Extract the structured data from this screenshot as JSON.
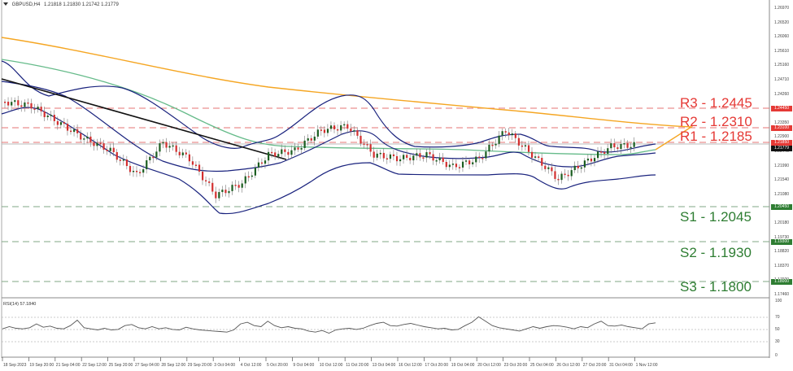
{
  "header": {
    "symbol": "GBPUSD,H4",
    "ohlc": "1.21818 1.21830 1.21742 1.21779"
  },
  "levels": [
    {
      "id": "R3",
      "label": "R3 - 1.2445",
      "price": 1.2445,
      "type": "resistance",
      "color": "#e53935",
      "tag": "1.24450"
    },
    {
      "id": "R2",
      "label": "R2 - 1.2310",
      "price": 1.231,
      "type": "resistance",
      "color": "#e53935",
      "tag": "1.23100"
    },
    {
      "id": "R1",
      "label": "R1 - 1.2185",
      "price": 1.2185,
      "type": "resistance",
      "color": "#e53935",
      "tag": "1.21850"
    },
    {
      "id": "S1",
      "label": "S1 - 1.2045",
      "price": 1.2045,
      "type": "support",
      "color": "#2e7d32",
      "tag": "1.20450"
    },
    {
      "id": "S2",
      "label": "S2 - 1.1930",
      "price": 1.193,
      "type": "support",
      "color": "#2e7d32",
      "tag": "1.19300"
    },
    {
      "id": "S3",
      "label": "S3 - 1.1800",
      "price": 1.18,
      "type": "support",
      "color": "#2e7d32",
      "tag": "1.18000"
    }
  ],
  "price_axis": {
    "ticks": [
      "1.26970",
      "1.26520",
      "1.26060",
      "1.25610",
      "1.25160",
      "1.24710",
      "1.24260",
      "1.23800",
      "1.23350",
      "1.22900",
      "1.22440",
      "1.21990",
      "1.21540",
      "1.21080",
      "1.20630",
      "1.20180",
      "1.19730",
      "1.18820",
      "1.18370",
      "1.17920",
      "1.17460"
    ],
    "current_price_tag": "1.21779"
  },
  "rsi": {
    "title": "RSI(14) 57.1840",
    "levels": [
      "100",
      "70",
      "50",
      "30",
      "0"
    ]
  },
  "time_axis": [
    "18 Sep 2023",
    "19 Sep 20:00",
    "21 Sep 04:00",
    "22 Sep 12:00",
    "25 Sep 20:00",
    "27 Sep 04:00",
    "28 Sep 12:00",
    "29 Sep 20:00",
    "3 Oct 04:00",
    "4 Oct 12:00",
    "5 Oct 20:00",
    "9 Oct 04:00",
    "10 Oct 12:00",
    "11 Oct 20:00",
    "13 Oct 04:00",
    "16 Oct 12:00",
    "17 Oct 20:00",
    "19 Oct 04:00",
    "20 Oct 12:00",
    "23 Oct 20:00",
    "25 Oct 04:00",
    "26 Oct 12:00",
    "27 Oct 20:00",
    "31 Oct 04:00",
    "1 Nov 12:00"
  ],
  "chart_data": {
    "type": "candlestick",
    "title": "GBPUSD,H4",
    "instrument": "GBPUSD",
    "timeframe": "H4",
    "last_ohlc": {
      "open": 1.21818,
      "high": 1.2183,
      "low": 1.21742,
      "close": 1.21779
    },
    "x_range": [
      "18 Sep 2023",
      "1 Nov 12:00"
    ],
    "ylim": [
      1.1746,
      1.2697
    ],
    "indicators": [
      "Bollinger Bands (navy)",
      "Moving average (orange, slow)",
      "Moving average (green, medium)",
      "Downtrend line (black)",
      "RSI(14)"
    ],
    "horizontal_levels": {
      "R3": 1.2445,
      "R2": 1.231,
      "R1": 1.2185,
      "S1": 1.2045,
      "S2": 1.193,
      "S3": 1.18
    },
    "approx_close_path": [
      {
        "t": "18 Sep 2023",
        "close": 1.2395
      },
      {
        "t": "19 Sep 20:00",
        "close": 1.239
      },
      {
        "t": "21 Sep 04:00",
        "close": 1.231
      },
      {
        "t": "22 Sep 12:00",
        "close": 1.2245
      },
      {
        "t": "25 Sep 20:00",
        "close": 1.22
      },
      {
        "t": "27 Sep 04:00",
        "close": 1.214
      },
      {
        "t": "28 Sep 12:00",
        "close": 1.223
      },
      {
        "t": "29 Sep 20:00",
        "close": 1.22
      },
      {
        "t": "3 Oct 04:00",
        "close": 1.207
      },
      {
        "t": "4 Oct 12:00",
        "close": 1.211
      },
      {
        "t": "5 Oct 20:00",
        "close": 1.2185
      },
      {
        "t": "9 Oct 04:00",
        "close": 1.219
      },
      {
        "t": "10 Oct 12:00",
        "close": 1.227
      },
      {
        "t": "11 Oct 20:00",
        "close": 1.23
      },
      {
        "t": "13 Oct 04:00",
        "close": 1.217
      },
      {
        "t": "16 Oct 12:00",
        "close": 1.2165
      },
      {
        "t": "17 Oct 20:00",
        "close": 1.218
      },
      {
        "t": "19 Oct 04:00",
        "close": 1.2125
      },
      {
        "t": "20 Oct 12:00",
        "close": 1.215
      },
      {
        "t": "23 Oct 20:00",
        "close": 1.225
      },
      {
        "t": "25 Oct 04:00",
        "close": 1.214
      },
      {
        "t": "26 Oct 12:00",
        "close": 1.208
      },
      {
        "t": "27 Oct 20:00",
        "close": 1.213
      },
      {
        "t": "31 Oct 04:00",
        "close": 1.216
      },
      {
        "t": "1 Nov 12:00",
        "close": 1.2178
      }
    ],
    "rsi": {
      "period": 14,
      "last": 57.184,
      "levels": [
        30,
        50,
        70
      ],
      "ylim": [
        0,
        100
      ]
    }
  },
  "colors": {
    "bull": "#1b5e20",
    "bear": "#d32f2f",
    "bands": "#1a237e",
    "ma_slow": "#f5a623",
    "ma_mid": "#66bb8a",
    "trend": "#111111",
    "resistance": "#e53935",
    "support": "#2e7d32"
  }
}
